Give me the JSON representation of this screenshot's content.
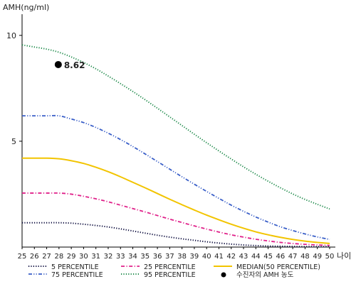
{
  "chart_data": {
    "type": "line",
    "ylabel": "AMH(ng/ml)",
    "xlabel": "나이",
    "ylim": [
      0,
      11
    ],
    "xlim": [
      25,
      50
    ],
    "yticks": [
      5,
      10
    ],
    "x": [
      25,
      26,
      27,
      28,
      29,
      30,
      31,
      32,
      33,
      34,
      35,
      36,
      37,
      38,
      39,
      40,
      41,
      42,
      43,
      44,
      45,
      46,
      47,
      48,
      49,
      50
    ],
    "grid": false,
    "legend_position": "bottom",
    "series": [
      {
        "name": "5 PERCENTILE",
        "style": "dotted",
        "color": "#0a0a3c",
        "values": [
          1.15,
          1.15,
          1.15,
          1.15,
          1.13,
          1.08,
          1.02,
          0.95,
          0.86,
          0.76,
          0.66,
          0.56,
          0.47,
          0.39,
          0.32,
          0.25,
          0.19,
          0.14,
          0.1,
          0.07,
          0.05,
          0.04,
          0.03,
          0.02,
          0.02,
          0.02
        ]
      },
      {
        "name": "25 PERCENTILE",
        "style": "dashdot",
        "color": "#e0218a",
        "values": [
          2.55,
          2.55,
          2.55,
          2.55,
          2.5,
          2.4,
          2.28,
          2.14,
          1.98,
          1.82,
          1.66,
          1.49,
          1.32,
          1.16,
          1.0,
          0.85,
          0.71,
          0.58,
          0.47,
          0.37,
          0.29,
          0.22,
          0.17,
          0.13,
          0.1,
          0.08
        ]
      },
      {
        "name": "MEDIAN(50 PERCENTILE)",
        "style": "solid",
        "color": "#f2c400",
        "values": [
          4.2,
          4.2,
          4.2,
          4.17,
          4.08,
          3.95,
          3.77,
          3.56,
          3.32,
          3.06,
          2.8,
          2.53,
          2.26,
          2.0,
          1.75,
          1.51,
          1.29,
          1.08,
          0.89,
          0.72,
          0.58,
          0.46,
          0.36,
          0.28,
          0.22,
          0.17
        ]
      },
      {
        "name": "75 PERCENTILE",
        "style": "dashdotdot",
        "color": "#3a5fc8",
        "values": [
          6.2,
          6.2,
          6.2,
          6.2,
          6.05,
          5.88,
          5.65,
          5.38,
          5.08,
          4.75,
          4.4,
          4.04,
          3.68,
          3.32,
          2.97,
          2.63,
          2.3,
          1.98,
          1.69,
          1.42,
          1.18,
          0.96,
          0.78,
          0.62,
          0.48,
          0.36
        ]
      },
      {
        "name": "95 PERCENTILE",
        "style": "dotted",
        "color": "#1e8a4a",
        "values": [
          9.55,
          9.45,
          9.35,
          9.2,
          8.98,
          8.72,
          8.42,
          8.08,
          7.72,
          7.35,
          6.96,
          6.56,
          6.15,
          5.74,
          5.33,
          4.93,
          4.54,
          4.16,
          3.79,
          3.44,
          3.11,
          2.8,
          2.51,
          2.25,
          2.02,
          1.8
        ]
      }
    ],
    "marker": {
      "name": "수진자의 AMH 농도",
      "x": 28,
      "y": 8.62,
      "label": "8.62",
      "color": "#000000"
    }
  }
}
